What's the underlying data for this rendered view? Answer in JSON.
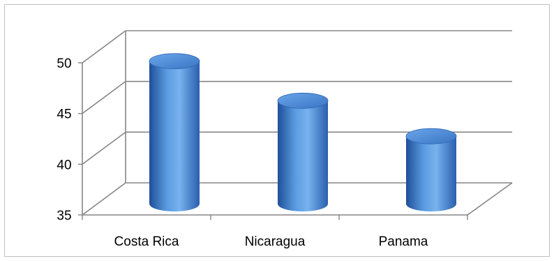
{
  "chart_data": {
    "type": "bar",
    "style": "3d-cylinder",
    "categories": [
      "Costa Rica",
      "Nicaragua",
      "Panama"
    ],
    "values": [
      49.2,
      45.3,
      41.8
    ],
    "ylim": [
      35,
      50
    ],
    "yticks": [
      35,
      40,
      45,
      50
    ],
    "ytick_labels": [
      "35",
      "40",
      "45",
      "50"
    ],
    "grid": true,
    "legend": "none",
    "colors": {
      "bar_light": "#8fbfec",
      "bar_mid": "#4f8fd8",
      "bar_dark": "#1f4f99",
      "grid": "#868686"
    }
  }
}
